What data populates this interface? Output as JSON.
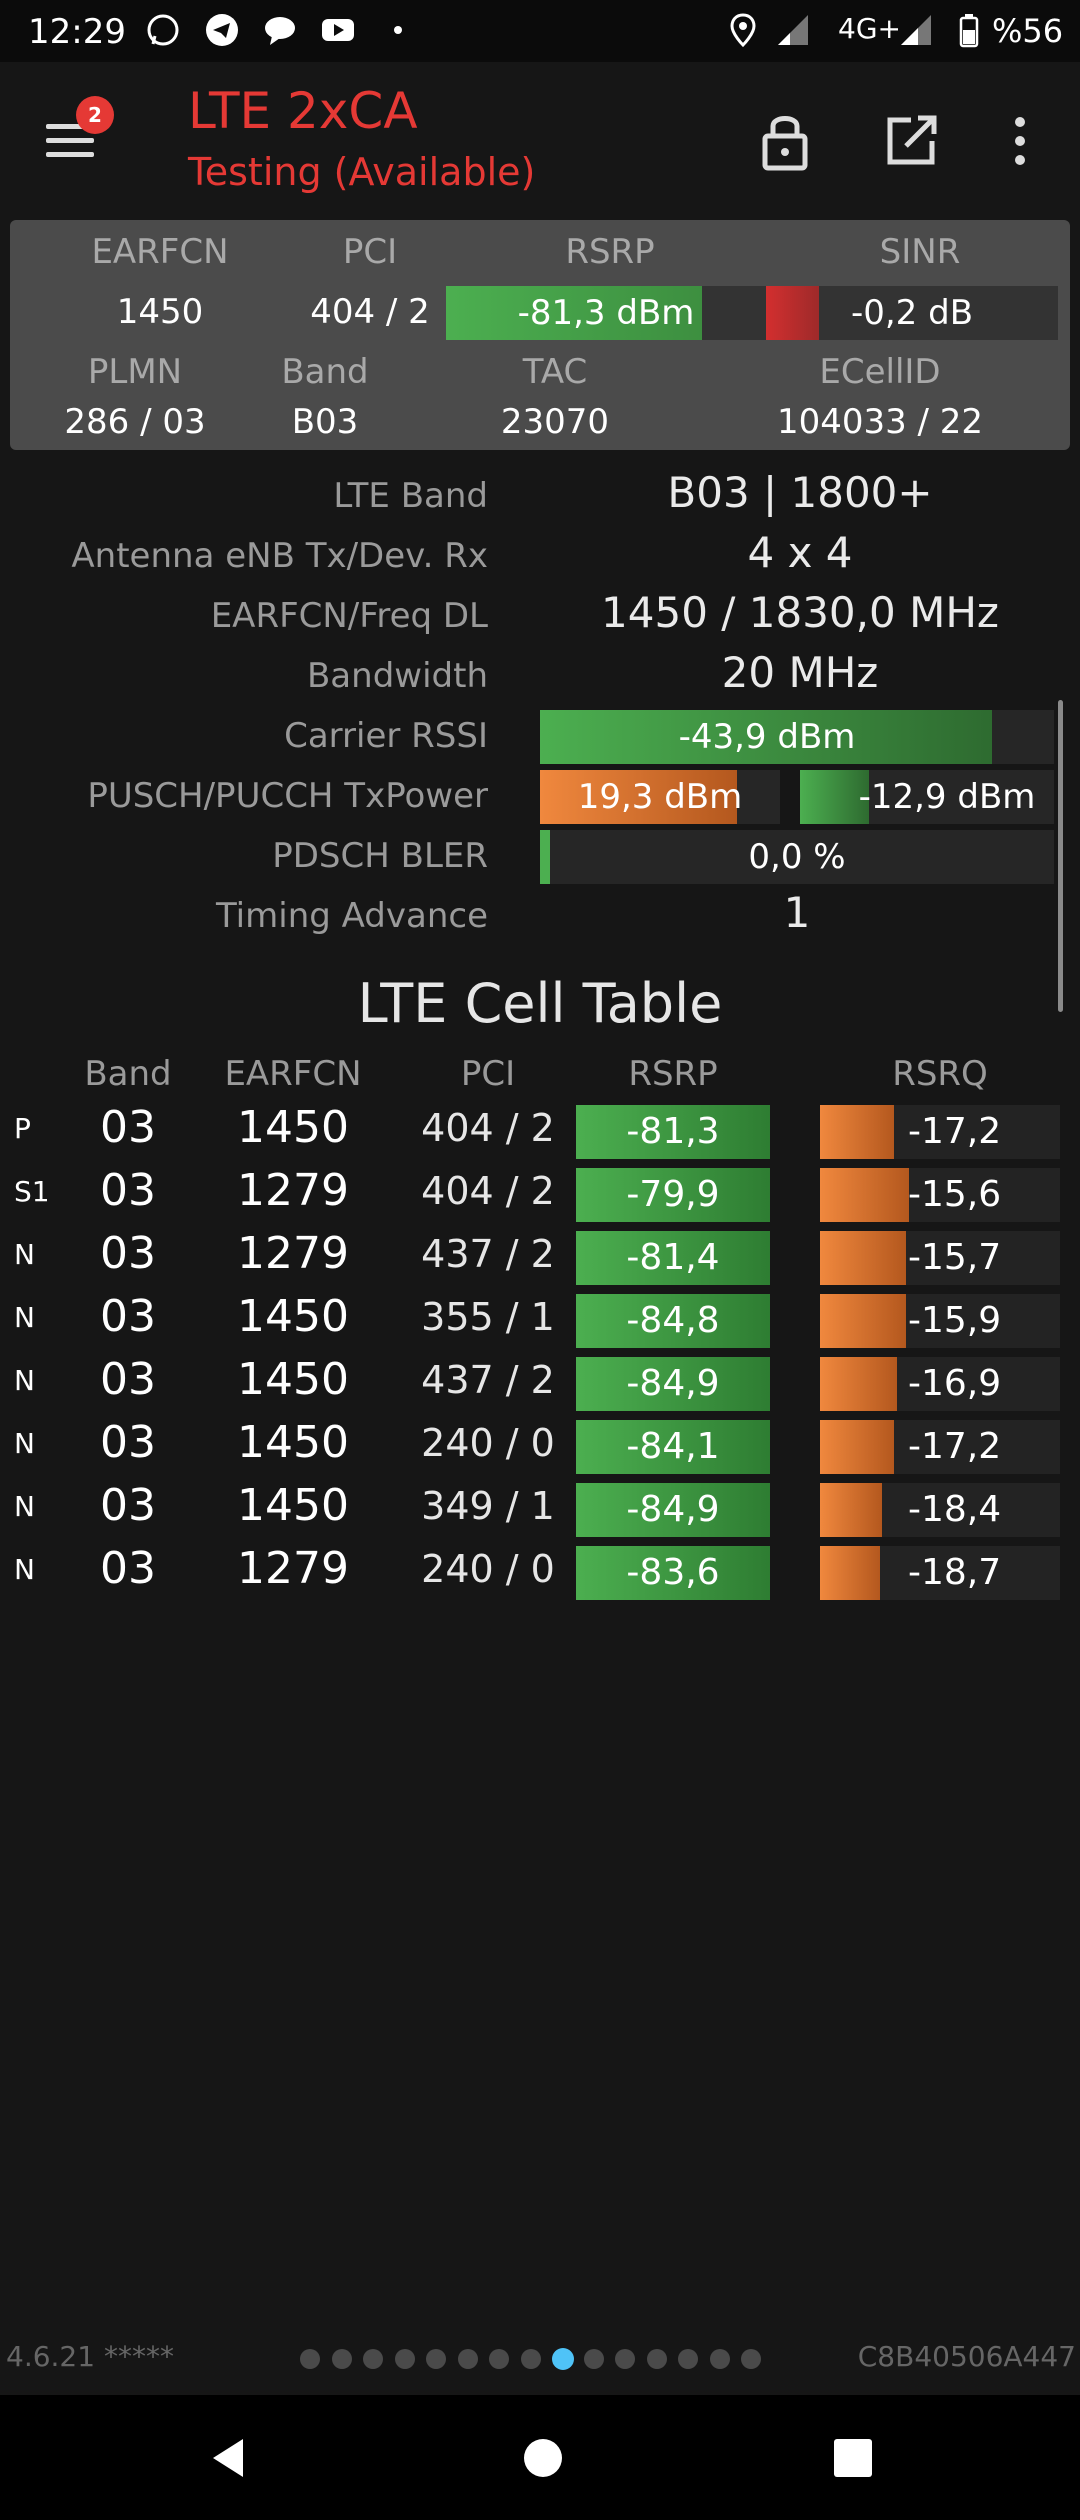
{
  "status_bar": {
    "time": "12:29",
    "network": "4G+",
    "battery": "%56",
    "notification_icons": [
      "whatsapp-icon",
      "telegram-icon",
      "chat-icon",
      "youtube-icon",
      "dot-icon"
    ],
    "right_icons": [
      "location-icon",
      "signal-icon",
      "signal-icon",
      "battery-icon"
    ]
  },
  "appbar": {
    "badge": "2",
    "title": "LTE 2xCA",
    "subtitle": "Testing (Available)",
    "icons": [
      "menu-icon",
      "lock-icon",
      "open-external-icon",
      "more-vert-icon"
    ],
    "accent": "#e53935"
  },
  "summary": {
    "labels": {
      "earfcn": "EARFCN",
      "pci": "PCI",
      "rsrp": "RSRP",
      "sinr": "SINR",
      "plmn": "PLMN",
      "band": "Band",
      "tac": "TAC",
      "ecellid": "ECellID"
    },
    "earfcn": "1450",
    "pci": "404 / 2",
    "rsrp": "-81,3 dBm",
    "rsrp_level": 0.8,
    "sinr": "-0,2 dB",
    "sinr_level": 0.18,
    "plmn": "286 / 03",
    "band": "B03",
    "tac": "23070",
    "ecellid": "104033 / 22"
  },
  "details": {
    "lte_band_label": "LTE Band",
    "lte_band": "B03 | 1800+",
    "antenna_label": "Antenna eNB Tx/Dev. Rx",
    "antenna": "4 x 4",
    "freq_label": "EARFCN/Freq DL",
    "freq": "1450 / 1830,0 MHz",
    "bandwidth_label": "Bandwidth",
    "bandwidth": "20 MHz",
    "rssi_label": "Carrier RSSI",
    "rssi": "-43,9 dBm",
    "rssi_level": 0.88,
    "txpower_label": "PUSCH/PUCCH TxPower",
    "pusch": "19,3 dBm",
    "pusch_level": 0.82,
    "pucch": "-12,9 dBm",
    "pucch_level": 0.27,
    "bler_label": "PDSCH BLER",
    "bler": "0,0 %",
    "bler_level": 0.02,
    "ta_label": "Timing Advance",
    "ta": "1"
  },
  "cell_table": {
    "title": "LTE Cell Table",
    "headers": {
      "band": "Band",
      "earfcn": "EARFCN",
      "pci": "PCI",
      "rsrp": "RSRP",
      "rsrq": "RSRQ"
    },
    "rows": [
      {
        "type": "P",
        "band": "03",
        "earfcn": "1450",
        "pci": "404 / 2",
        "rsrp": "-81,3",
        "rsrq": "-17,2",
        "rsrq_level": 0.31
      },
      {
        "type": "S1",
        "band": "03",
        "earfcn": "1279",
        "pci": "404 / 2",
        "rsrp": "-79,9",
        "rsrq": "-15,6",
        "rsrq_level": 0.37
      },
      {
        "type": "N",
        "band": "03",
        "earfcn": "1279",
        "pci": "437 / 2",
        "rsrp": "-81,4",
        "rsrq": "-15,7",
        "rsrq_level": 0.36
      },
      {
        "type": "N",
        "band": "03",
        "earfcn": "1450",
        "pci": "355 / 1",
        "rsrp": "-84,8",
        "rsrq": "-15,9",
        "rsrq_level": 0.36
      },
      {
        "type": "N",
        "band": "03",
        "earfcn": "1450",
        "pci": "437 / 2",
        "rsrp": "-84,9",
        "rsrq": "-16,9",
        "rsrq_level": 0.32
      },
      {
        "type": "N",
        "band": "03",
        "earfcn": "1450",
        "pci": "240 / 0",
        "rsrp": "-84,1",
        "rsrq": "-17,2",
        "rsrq_level": 0.31
      },
      {
        "type": "N",
        "band": "03",
        "earfcn": "1450",
        "pci": "349 / 1",
        "rsrp": "-84,9",
        "rsrq": "-18,4",
        "rsrq_level": 0.26
      },
      {
        "type": "N",
        "band": "03",
        "earfcn": "1279",
        "pci": "240 / 0",
        "rsrp": "-83,6",
        "rsrq": "-18,7",
        "rsrq_level": 0.25
      }
    ]
  },
  "footer": {
    "version": "4.6.21 *****",
    "device_id": "C8B40506A447",
    "page_count": 15,
    "active_page": 8
  },
  "navbar": {
    "icons": [
      "back-icon",
      "home-icon",
      "recents-icon"
    ]
  }
}
